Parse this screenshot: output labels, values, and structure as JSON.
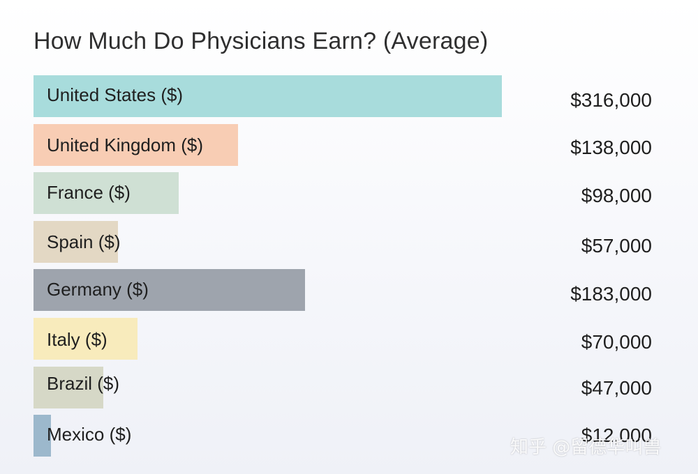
{
  "chart_data": {
    "type": "bar",
    "title": "How Much Do Physicians Earn? (Average)",
    "orientation": "horizontal",
    "categories": [
      "United States ($)",
      "United Kingdom ($)",
      "France ($)",
      "Spain ($)",
      "Germany ($)",
      "Italy ($)",
      "Brazil ($)",
      "Mexico ($)"
    ],
    "values": [
      316000,
      138000,
      98000,
      57000,
      183000,
      70000,
      47000,
      12000
    ],
    "value_labels": [
      "$316,000",
      "$138,000",
      "$98,000",
      "$57,000",
      "$183,000",
      "$70,000",
      "$47,000",
      "$12,000"
    ],
    "colors": [
      "#a8dcdc",
      "#f8cdb4",
      "#cfe0d4",
      "#e3d8c4",
      "#9ea4ad",
      "#f8ebbc",
      "#d6d8c7",
      "#9cb8cc"
    ],
    "xlim": [
      0,
      316000
    ],
    "grid": false,
    "legend": "none"
  },
  "watermark": "知乎 @留德华叫兽"
}
